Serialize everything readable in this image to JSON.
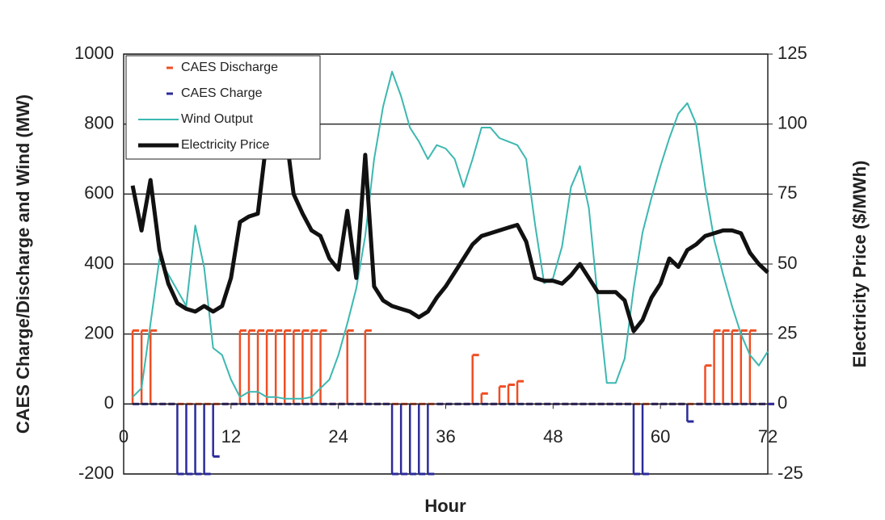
{
  "chart_data": {
    "type": "combo",
    "xlabel": "Hour",
    "ylabel": "CAES Charge/Discharge and Wind (MW)",
    "y2label": "Electricity Price ($/MWh)",
    "x": [
      0,
      1,
      2,
      3,
      4,
      5,
      6,
      7,
      8,
      9,
      10,
      11,
      12,
      13,
      14,
      15,
      16,
      17,
      18,
      19,
      20,
      21,
      22,
      23,
      24,
      25,
      26,
      27,
      28,
      29,
      30,
      31,
      32,
      33,
      34,
      35,
      36,
      37,
      38,
      39,
      40,
      41,
      42,
      43,
      44,
      45,
      46,
      47,
      48,
      49,
      50,
      51,
      52,
      53,
      54,
      55,
      56,
      57,
      58,
      59,
      60,
      61,
      62,
      63,
      64,
      65,
      66,
      67,
      68,
      69,
      70,
      71,
      72
    ],
    "xlim": [
      0,
      72
    ],
    "xticks": [
      0,
      12,
      24,
      36,
      48,
      60,
      72
    ],
    "ylim": [
      -200,
      1000
    ],
    "yticks": [
      -200,
      0,
      200,
      400,
      600,
      800,
      1000
    ],
    "y2lim": [
      -25,
      125
    ],
    "y2ticks": [
      -25,
      0,
      25,
      50,
      75,
      100,
      125
    ],
    "grid": true,
    "legend": "upper left",
    "series": [
      {
        "name": "CAES Discharge",
        "type": "stem",
        "color": "#f04e23",
        "values": [
          null,
          210,
          210,
          210,
          0,
          0,
          0,
          0,
          0,
          0,
          0,
          0,
          0,
          210,
          210,
          210,
          210,
          210,
          210,
          210,
          210,
          210,
          210,
          0,
          0,
          210,
          0,
          210,
          0,
          0,
          0,
          0,
          0,
          0,
          0,
          0,
          0,
          0,
          0,
          140,
          30,
          0,
          50,
          55,
          65,
          0,
          0,
          0,
          0,
          0,
          0,
          0,
          0,
          0,
          0,
          0,
          0,
          0,
          0,
          0,
          0,
          0,
          0,
          0,
          0,
          110,
          210,
          210,
          210,
          210,
          210,
          0,
          0
        ]
      },
      {
        "name": "CAES Charge",
        "type": "stem",
        "color": "#2b2b9a",
        "values": [
          null,
          0,
          0,
          0,
          0,
          0,
          -200,
          -200,
          -200,
          -200,
          -150,
          0,
          0,
          0,
          0,
          0,
          0,
          0,
          0,
          0,
          0,
          0,
          0,
          0,
          0,
          0,
          0,
          0,
          0,
          0,
          -200,
          -200,
          -200,
          -200,
          -200,
          0,
          0,
          0,
          0,
          0,
          0,
          0,
          0,
          0,
          0,
          0,
          0,
          0,
          0,
          0,
          0,
          0,
          0,
          0,
          0,
          0,
          0,
          -200,
          -200,
          0,
          0,
          0,
          0,
          -50,
          0,
          0,
          0,
          0,
          0,
          0,
          0,
          0,
          0
        ]
      },
      {
        "name": "Wind Output",
        "type": "line",
        "color": "#3cb8b0",
        "values": [
          null,
          20,
          45,
          230,
          415,
          370,
          325,
          280,
          510,
          390,
          160,
          140,
          70,
          20,
          35,
          35,
          20,
          20,
          15,
          15,
          15,
          20,
          45,
          70,
          140,
          230,
          330,
          480,
          700,
          850,
          950,
          880,
          790,
          750,
          700,
          740,
          730,
          700,
          620,
          700,
          790,
          790,
          760,
          750,
          740,
          700,
          510,
          345,
          360,
          450,
          620,
          680,
          560,
          300,
          60,
          60,
          130,
          330,
          490,
          590,
          680,
          760,
          830,
          860,
          800,
          620,
          470,
          370,
          280,
          200,
          140,
          110,
          150
        ]
      },
      {
        "name": "Electricity Price",
        "type": "line",
        "axis": "y2",
        "color": "#111111",
        "values": [
          null,
          78,
          62,
          80,
          55,
          43,
          36,
          34,
          33,
          35,
          33,
          35,
          45,
          65,
          67,
          68,
          95,
          108,
          100,
          75,
          68,
          62,
          60,
          52,
          48,
          69,
          45,
          89,
          42,
          37,
          35,
          34,
          33,
          31,
          33,
          38,
          42,
          47,
          52,
          57,
          60,
          61,
          62,
          63,
          64,
          58,
          45,
          44,
          44,
          43,
          46,
          50,
          45,
          40,
          40,
          40,
          37,
          26,
          30,
          38,
          43,
          52,
          49,
          55,
          57,
          60,
          61,
          62,
          62,
          61,
          54,
          50,
          47
        ]
      }
    ]
  }
}
